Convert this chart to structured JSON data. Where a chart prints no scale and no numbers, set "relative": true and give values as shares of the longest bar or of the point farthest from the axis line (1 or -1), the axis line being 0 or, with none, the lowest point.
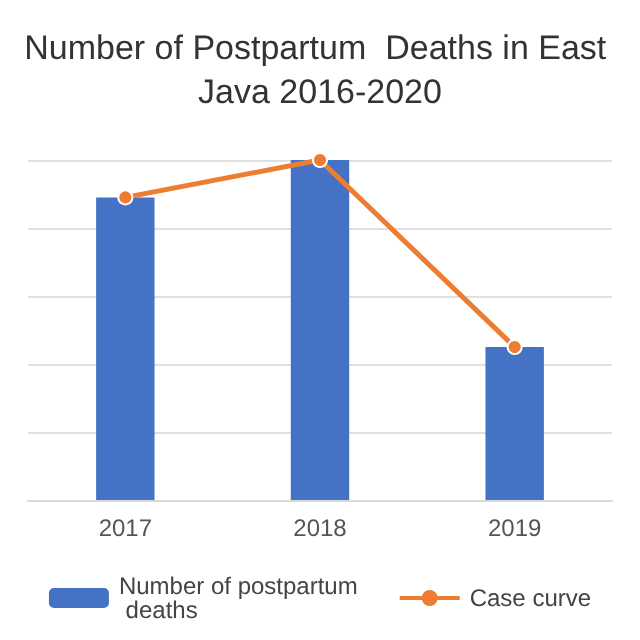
{
  "chart_data": {
    "type": "bar",
    "title": "Number of Postpartum  Deaths in East Java 2016-2020",
    "categories": [
      "2017",
      "2018",
      "2019"
    ],
    "relative": true,
    "grid": "y",
    "legend": "bottom",
    "series": [
      {
        "name": "Number of postpartum deaths",
        "color": "#4472c4",
        "values": [
          0.89,
          1,
          0.45
        ]
      },
      {
        "name": "Case curve",
        "type": "line",
        "color": "#ed7d31",
        "marker": "circle",
        "values": [
          0.89,
          1,
          0.45
        ]
      }
    ]
  }
}
